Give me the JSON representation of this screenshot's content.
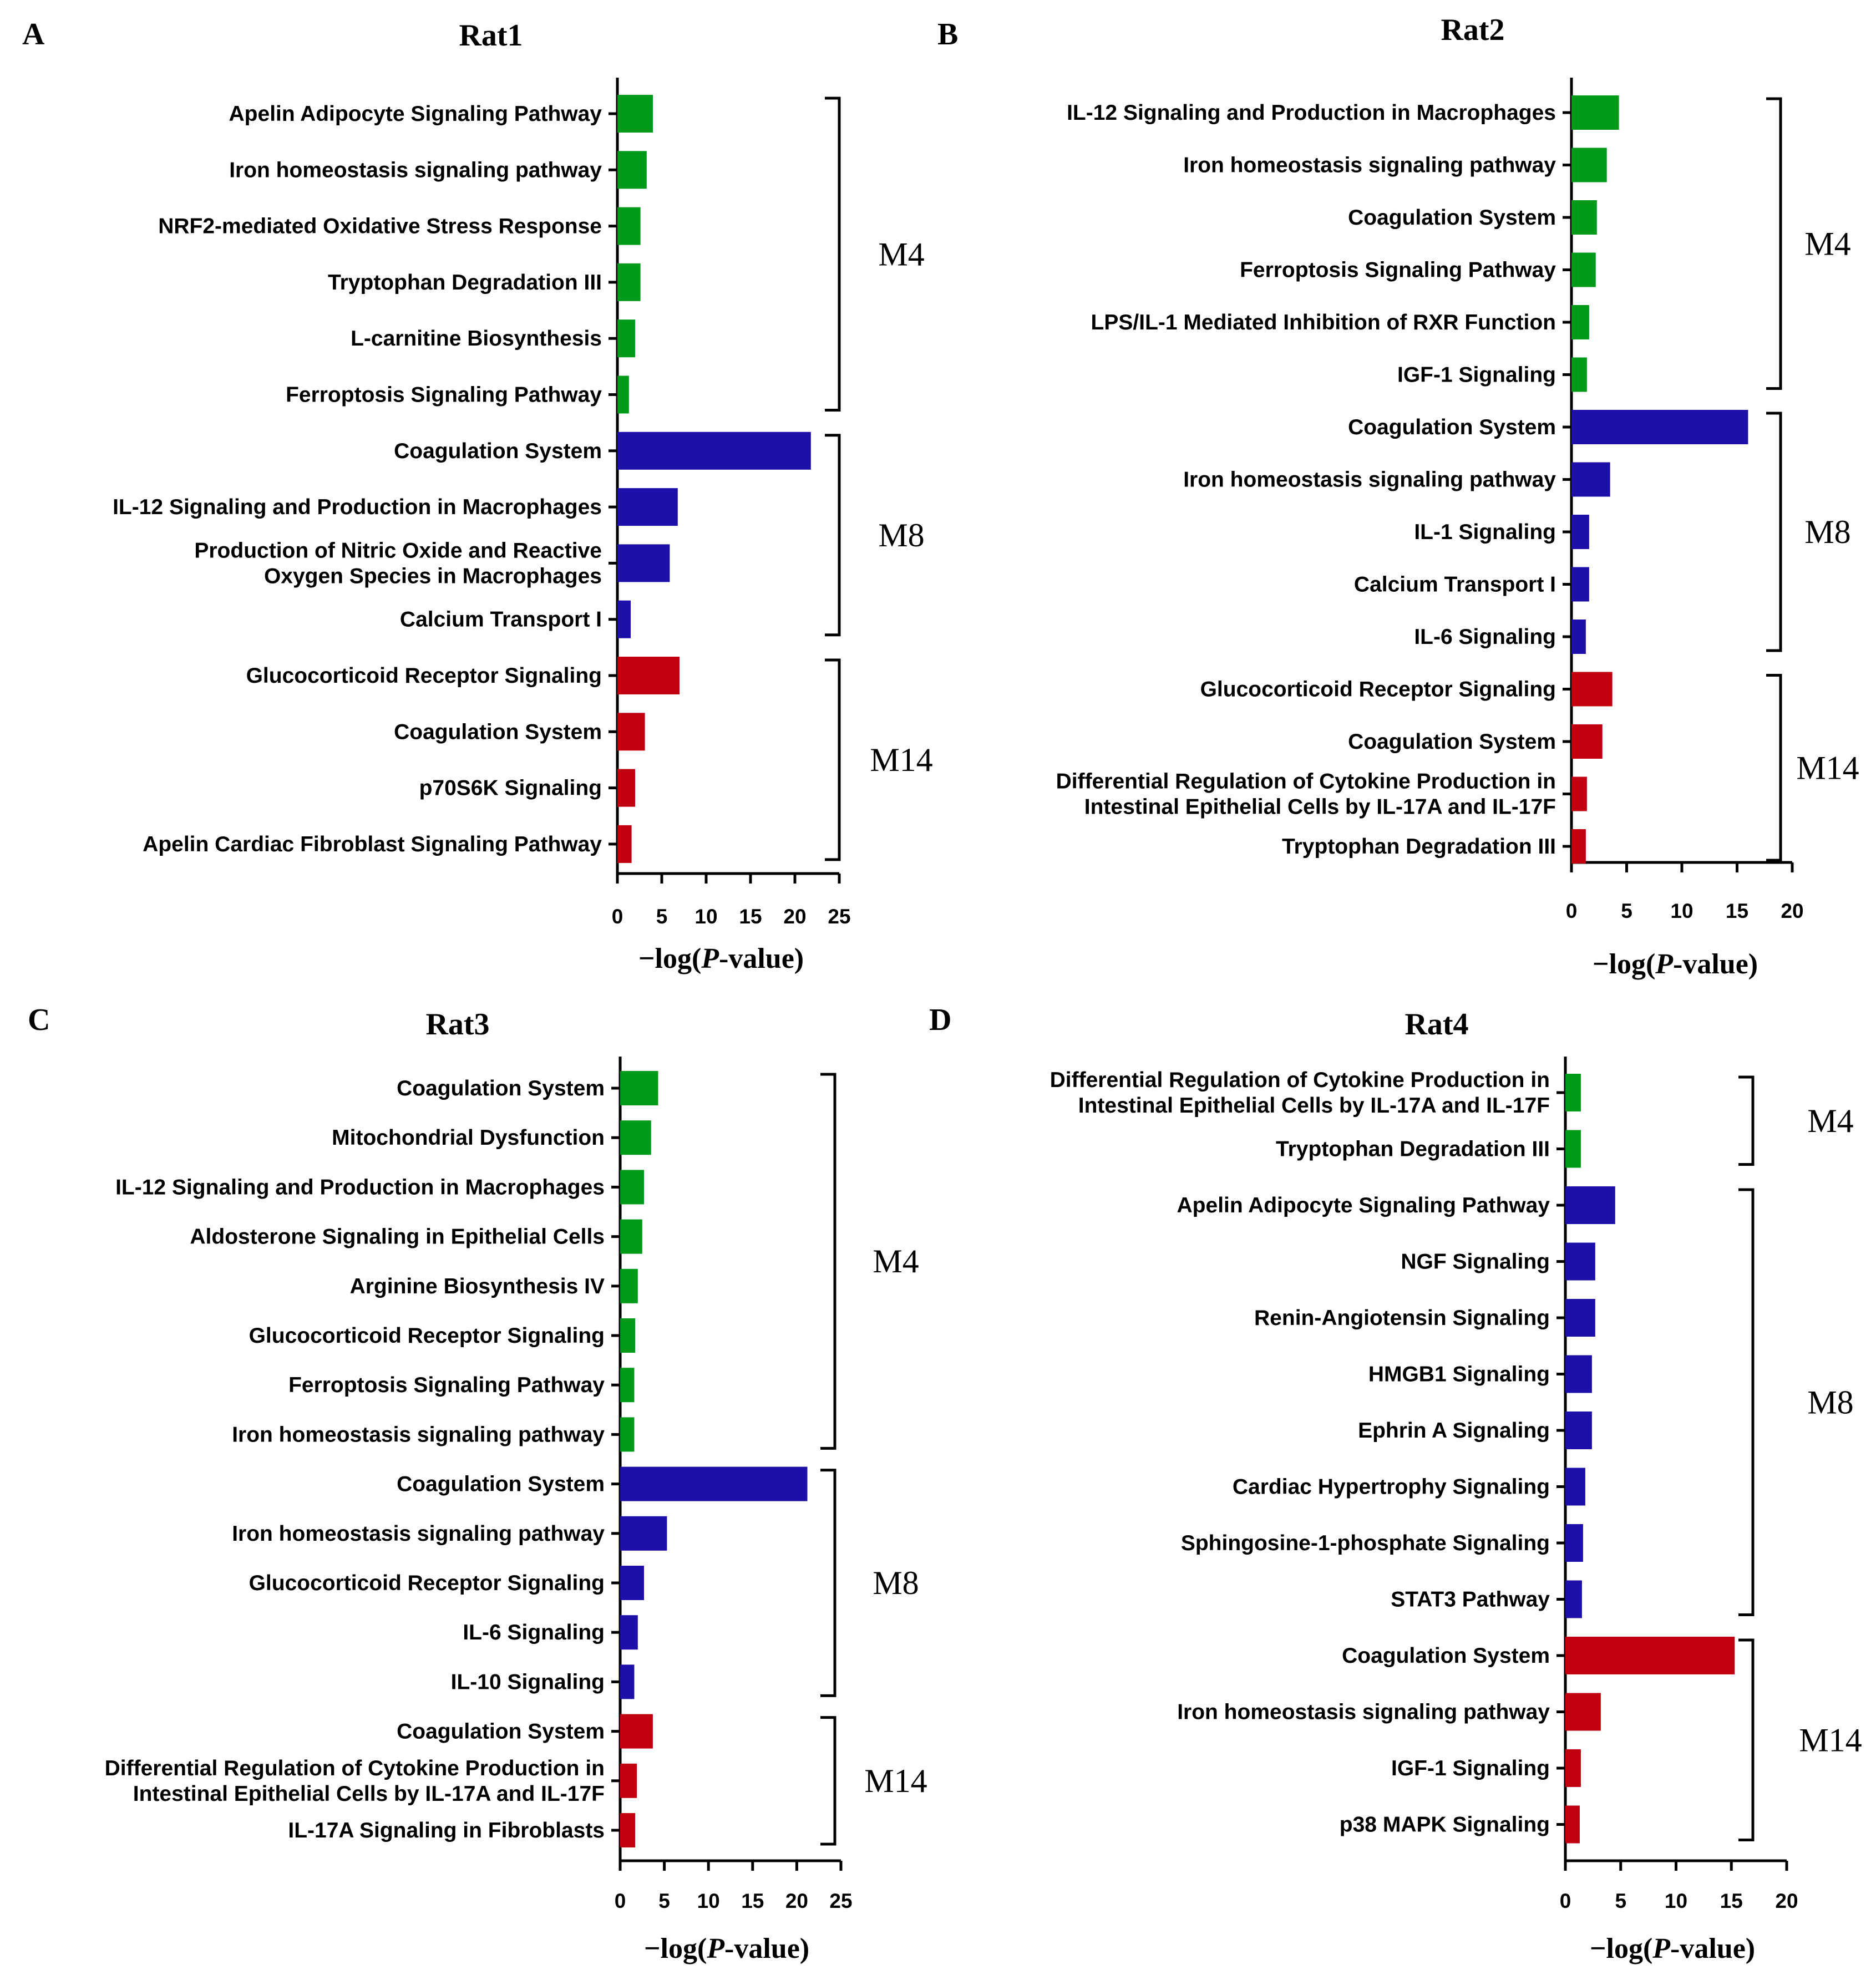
{
  "colors": {
    "M4": "#009a1a",
    "M8": "#1c10a8",
    "M14": "#c00010"
  },
  "chart_data": [
    {
      "type": "bar",
      "letter": "A",
      "title": "Rat1",
      "xlabel_prefix": "−log(",
      "xlabel_italic": "P",
      "xlabel_suffix": "-value)",
      "xlim": [
        0,
        25
      ],
      "xticks": [
        "0",
        "5",
        "10",
        "15",
        "20",
        "25"
      ],
      "groups": [
        {
          "module": "M4",
          "bars": [
            {
              "label": [
                "Apelin Adipocyte Signaling Pathway"
              ],
              "value": 4.0
            },
            {
              "label": [
                "Iron homeostasis signaling pathway"
              ],
              "value": 3.3
            },
            {
              "label": [
                "NRF2-mediated Oxidative Stress Response"
              ],
              "value": 2.6
            },
            {
              "label": [
                "Tryptophan Degradation III"
              ],
              "value": 2.6
            },
            {
              "label": [
                "L-carnitine Biosynthesis"
              ],
              "value": 2.0
            },
            {
              "label": [
                "Ferroptosis Signaling Pathway"
              ],
              "value": 1.3
            }
          ]
        },
        {
          "module": "M8",
          "bars": [
            {
              "label": [
                "Coagulation System"
              ],
              "value": 21.8
            },
            {
              "label": [
                "IL-12 Signaling and Production in Macrophages"
              ],
              "value": 6.8
            },
            {
              "label": [
                "Production of Nitric Oxide and Reactive",
                "Oxygen Species in Macrophages"
              ],
              "value": 5.9
            },
            {
              "label": [
                "Calcium Transport I"
              ],
              "value": 1.5
            }
          ]
        },
        {
          "module": "M14",
          "bars": [
            {
              "label": [
                "Glucocorticoid Receptor Signaling"
              ],
              "value": 7.0
            },
            {
              "label": [
                "Coagulation System"
              ],
              "value": 3.1
            },
            {
              "label": [
                "p70S6K Signaling"
              ],
              "value": 2.0
            },
            {
              "label": [
                "Apelin Cardiac Fibroblast Signaling Pathway"
              ],
              "value": 1.6
            }
          ]
        }
      ]
    },
    {
      "type": "bar",
      "letter": "B",
      "title": "Rat2",
      "xlabel_prefix": "−log(",
      "xlabel_italic": "P",
      "xlabel_suffix": "-value)",
      "xlim": [
        0,
        20
      ],
      "xticks": [
        "0",
        "5",
        "10",
        "15",
        "20"
      ],
      "groups": [
        {
          "module": "M4",
          "bars": [
            {
              "label": [
                "IL-12 Signaling and Production in Macrophages"
              ],
              "value": 4.3
            },
            {
              "label": [
                "Iron homeostasis signaling pathway"
              ],
              "value": 3.2
            },
            {
              "label": [
                "Coagulation System"
              ],
              "value": 2.3
            },
            {
              "label": [
                "Ferroptosis Signaling Pathway"
              ],
              "value": 2.2
            },
            {
              "label": [
                "LPS/IL-1 Mediated Inhibition of RXR Function"
              ],
              "value": 1.6
            },
            {
              "label": [
                "IGF-1 Signaling"
              ],
              "value": 1.4
            }
          ]
        },
        {
          "module": "M8",
          "bars": [
            {
              "label": [
                "Coagulation System"
              ],
              "value": 16.0
            },
            {
              "label": [
                "Iron homeostasis signaling pathway"
              ],
              "value": 3.5
            },
            {
              "label": [
                "IL-1 Signaling"
              ],
              "value": 1.6
            },
            {
              "label": [
                "Calcium Transport I"
              ],
              "value": 1.6
            },
            {
              "label": [
                "IL-6 Signaling"
              ],
              "value": 1.3
            }
          ]
        },
        {
          "module": "M14",
          "bars": [
            {
              "label": [
                "Glucocorticoid Receptor Signaling"
              ],
              "value": 3.7
            },
            {
              "label": [
                "Coagulation System"
              ],
              "value": 2.8
            },
            {
              "label": [
                "Differential Regulation of Cytokine Production in",
                "Intestinal Epithelial Cells by IL-17A and IL-17F"
              ],
              "value": 1.4
            },
            {
              "label": [
                "Tryptophan Degradation III"
              ],
              "value": 1.3
            }
          ]
        }
      ]
    },
    {
      "type": "bar",
      "letter": "C",
      "title": "Rat3",
      "xlabel_prefix": "−log(",
      "xlabel_italic": "P",
      "xlabel_suffix": "-value)",
      "xlim": [
        0,
        25
      ],
      "xticks": [
        "0",
        "5",
        "10",
        "15",
        "20",
        "25"
      ],
      "groups": [
        {
          "module": "M4",
          "bars": [
            {
              "label": [
                "Coagulation System"
              ],
              "value": 4.3
            },
            {
              "label": [
                "Mitochondrial Dysfunction"
              ],
              "value": 3.5
            },
            {
              "label": [
                "IL-12 Signaling and Production in Macrophages"
              ],
              "value": 2.7
            },
            {
              "label": [
                "Aldosterone Signaling in Epithelial Cells"
              ],
              "value": 2.5
            },
            {
              "label": [
                "Arginine Biosynthesis IV"
              ],
              "value": 2.0
            },
            {
              "label": [
                "Glucocorticoid Receptor Signaling"
              ],
              "value": 1.7
            },
            {
              "label": [
                "Ferroptosis Signaling Pathway"
              ],
              "value": 1.6
            },
            {
              "label": [
                "Iron homeostasis signaling pathway"
              ],
              "value": 1.6
            }
          ]
        },
        {
          "module": "M8",
          "bars": [
            {
              "label": [
                "Coagulation System"
              ],
              "value": 21.2
            },
            {
              "label": [
                "Iron homeostasis signaling pathway"
              ],
              "value": 5.3
            },
            {
              "label": [
                "Glucocorticoid Receptor Signaling"
              ],
              "value": 2.7
            },
            {
              "label": [
                "IL-6 Signaling"
              ],
              "value": 2.0
            },
            {
              "label": [
                "IL-10 Signaling"
              ],
              "value": 1.6
            }
          ]
        },
        {
          "module": "M14",
          "bars": [
            {
              "label": [
                "Coagulation System"
              ],
              "value": 3.7
            },
            {
              "label": [
                "Differential Regulation of Cytokine Production in",
                "Intestinal Epithelial Cells by IL-17A and IL-17F"
              ],
              "value": 1.9
            },
            {
              "label": [
                "IL-17A Signaling in Fibroblasts"
              ],
              "value": 1.7
            }
          ]
        }
      ]
    },
    {
      "type": "bar",
      "letter": "D",
      "title": "Rat4",
      "xlabel_prefix": "−log(",
      "xlabel_italic": "P",
      "xlabel_suffix": "-value)",
      "xlim": [
        0,
        20
      ],
      "xticks": [
        "0",
        "5",
        "10",
        "15",
        "20"
      ],
      "groups": [
        {
          "module": "M4",
          "bars": [
            {
              "label": [
                "Differential Regulation of Cytokine Production in",
                "Intestinal Epithelial Cells by IL-17A and IL-17F"
              ],
              "value": 1.4
            },
            {
              "label": [
                "Tryptophan Degradation III"
              ],
              "value": 1.4
            }
          ]
        },
        {
          "module": "M8",
          "bars": [
            {
              "label": [
                "Apelin Adipocyte Signaling Pathway"
              ],
              "value": 4.5
            },
            {
              "label": [
                "NGF Signaling"
              ],
              "value": 2.7
            },
            {
              "label": [
                "Renin-Angiotensin Signaling"
              ],
              "value": 2.7
            },
            {
              "label": [
                "HMGB1 Signaling"
              ],
              "value": 2.4
            },
            {
              "label": [
                "Ephrin A Signaling"
              ],
              "value": 2.4
            },
            {
              "label": [
                "Cardiac Hypertrophy Signaling"
              ],
              "value": 1.8
            },
            {
              "label": [
                "Sphingosine-1-phosphate Signaling"
              ],
              "value": 1.6
            },
            {
              "label": [
                "STAT3 Pathway"
              ],
              "value": 1.5
            }
          ]
        },
        {
          "module": "M14",
          "bars": [
            {
              "label": [
                "Coagulation System"
              ],
              "value": 15.3
            },
            {
              "label": [
                "Iron homeostasis signaling pathway"
              ],
              "value": 3.2
            },
            {
              "label": [
                "IGF-1 Signaling"
              ],
              "value": 1.4
            },
            {
              "label": [
                "p38 MAPK Signaling"
              ],
              "value": 1.3
            }
          ]
        }
      ]
    }
  ]
}
